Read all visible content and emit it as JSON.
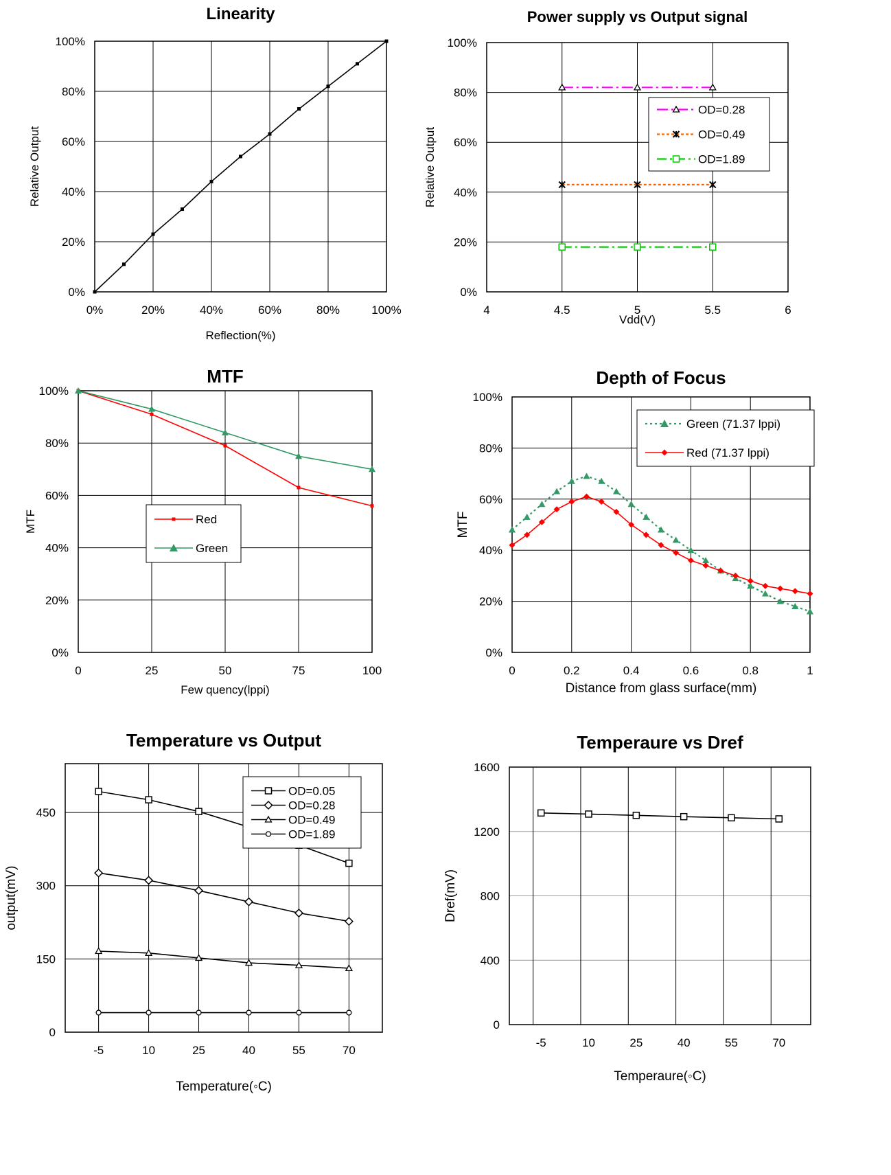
{
  "chart_data": [
    {
      "type": "line",
      "title": "Linearity",
      "xlabel": "Reflection(%)",
      "ylabel": "Relative Output",
      "xlim": [
        0,
        100
      ],
      "ylim": [
        0,
        100
      ],
      "x_ticks": [
        0,
        20,
        40,
        60,
        80,
        100
      ],
      "x_tick_labels": [
        "0%",
        "20%",
        "40%",
        "60%",
        "80%",
        "100%"
      ],
      "y_ticks": [
        0,
        20,
        40,
        60,
        80,
        100
      ],
      "y_tick_labels": [
        "0%",
        "20%",
        "40%",
        "60%",
        "80%",
        "100%"
      ],
      "grid": true,
      "series": [
        {
          "name": "",
          "color": "#000000",
          "marker": "dot",
          "dash": "",
          "x": [
            0,
            10,
            20,
            30,
            40,
            50,
            60,
            70,
            80,
            90,
            100
          ],
          "y": [
            0,
            11,
            23,
            33,
            44,
            54,
            63,
            73,
            82,
            91,
            100
          ]
        }
      ]
    },
    {
      "type": "line",
      "title": "Power supply vs Output signal",
      "xlabel": "Vdd(V)",
      "ylabel": "Relative Output",
      "xlim": [
        4,
        6
      ],
      "ylim": [
        0,
        100
      ],
      "x_ticks": [
        4,
        4.5,
        5,
        5.5,
        6
      ],
      "x_tick_labels": [
        "4",
        "4.5",
        "5",
        "5.5",
        "6"
      ],
      "y_ticks": [
        0,
        20,
        40,
        60,
        80,
        100
      ],
      "y_tick_labels": [
        "0%",
        "20%",
        "40%",
        "60%",
        "80%",
        "100%"
      ],
      "grid": true,
      "legend_position": "right",
      "series": [
        {
          "name": "OD=0.28",
          "color": "#ff00ff",
          "marker": "triangle-open",
          "dash": "16,5,3,5",
          "x": [
            4.5,
            5,
            5.5
          ],
          "y": [
            82,
            82,
            82
          ]
        },
        {
          "name": "OD=0.49",
          "color": "#ff6600",
          "marker": "star",
          "dash": "4,3",
          "x": [
            4.5,
            5,
            5.5
          ],
          "y": [
            43,
            43,
            43
          ]
        },
        {
          "name": "OD=1.89",
          "color": "#00cc00",
          "marker": "square-open",
          "dash": "14,5,3,5",
          "x": [
            4.5,
            5,
            5.5
          ],
          "y": [
            18,
            18,
            18
          ]
        }
      ]
    },
    {
      "type": "line",
      "title": "MTF",
      "xlabel": "Few quency(lppi)",
      "ylabel": "MTF",
      "xlim": [
        0,
        100
      ],
      "ylim": [
        0,
        100
      ],
      "x_ticks": [
        0,
        25,
        50,
        75,
        100
      ],
      "x_tick_labels": [
        "0",
        "25",
        "50",
        "75",
        "100"
      ],
      "y_ticks": [
        0,
        20,
        40,
        60,
        80,
        100
      ],
      "y_tick_labels": [
        "0%",
        "20%",
        "40%",
        "60%",
        "80%",
        "100%"
      ],
      "grid": true,
      "legend_position": "center-left",
      "series": [
        {
          "name": "Red",
          "color": "#ff0000",
          "marker": "dot",
          "dash": "",
          "x": [
            0,
            25,
            50,
            75,
            100
          ],
          "y": [
            100,
            91,
            79,
            63,
            56
          ]
        },
        {
          "name": "Green",
          "color": "#339966",
          "marker": "triangle",
          "dash": "",
          "x": [
            0,
            25,
            50,
            75,
            100
          ],
          "y": [
            100,
            93,
            84,
            75,
            70
          ]
        }
      ]
    },
    {
      "type": "line",
      "title": "Depth of Focus",
      "xlabel": "Distance from glass surface(mm)",
      "ylabel": "MTF",
      "xlim": [
        0,
        1
      ],
      "ylim": [
        0,
        100
      ],
      "x_ticks": [
        0,
        0.2,
        0.4,
        0.6,
        0.8,
        1
      ],
      "x_tick_labels": [
        "0",
        "0.2",
        "0.4",
        "0.6",
        "0.8",
        "1"
      ],
      "y_ticks": [
        0,
        20,
        40,
        60,
        80,
        100
      ],
      "y_tick_labels": [
        "0%",
        "20%",
        "40%",
        "60%",
        "80%",
        "100%"
      ],
      "grid": true,
      "legend_position": "top-right",
      "series": [
        {
          "name": "Green (71.37 lppi)",
          "color": "#339966",
          "marker": "triangle",
          "dash": "3,4",
          "x": [
            0,
            0.05,
            0.1,
            0.15,
            0.2,
            0.25,
            0.3,
            0.35,
            0.4,
            0.45,
            0.5,
            0.55,
            0.6,
            0.65,
            0.7,
            0.75,
            0.8,
            0.85,
            0.9,
            0.95,
            1
          ],
          "y": [
            48,
            53,
            58,
            63,
            67,
            69,
            67,
            63,
            58,
            53,
            48,
            44,
            40,
            36,
            32,
            29,
            26,
            23,
            20,
            18,
            16
          ]
        },
        {
          "name": "Red (71.37 lppi)",
          "color": "#ff0000",
          "marker": "diamond",
          "dash": "",
          "x": [
            0,
            0.05,
            0.1,
            0.15,
            0.2,
            0.25,
            0.3,
            0.35,
            0.4,
            0.45,
            0.5,
            0.55,
            0.6,
            0.65,
            0.7,
            0.75,
            0.8,
            0.85,
            0.9,
            0.95,
            1
          ],
          "y": [
            42,
            46,
            51,
            56,
            59,
            61,
            59,
            55,
            50,
            46,
            42,
            39,
            36,
            34,
            32,
            30,
            28,
            26,
            25,
            24,
            23
          ]
        }
      ]
    },
    {
      "type": "line",
      "title": "Temperature vs Output",
      "xlabel": "Temperature(◦C)",
      "ylabel": "output(mV)",
      "xlim": [
        -15,
        80
      ],
      "ylim": [
        0,
        550
      ],
      "x_ticks": [
        -5,
        10,
        25,
        40,
        55,
        70
      ],
      "x_tick_labels": [
        "-5",
        "10",
        "25",
        "40",
        "55",
        "70"
      ],
      "y_ticks": [
        0,
        150,
        300,
        450
      ],
      "y_tick_labels": [
        "0",
        "150",
        "300",
        "450"
      ],
      "grid": true,
      "legend_position": "top-right",
      "series": [
        {
          "name": "OD=0.05",
          "color": "#000000",
          "marker": "square-open",
          "dash": "",
          "x": [
            -5,
            10,
            25,
            40,
            55,
            70
          ],
          "y": [
            493,
            476,
            452,
            420,
            383,
            346
          ]
        },
        {
          "name": "OD=0.28",
          "color": "#000000",
          "marker": "diamond-open",
          "dash": "",
          "x": [
            -5,
            10,
            25,
            40,
            55,
            70
          ],
          "y": [
            326,
            311,
            290,
            267,
            244,
            227
          ]
        },
        {
          "name": "OD=0.49",
          "color": "#000000",
          "marker": "triangle-open",
          "dash": "",
          "x": [
            -5,
            10,
            25,
            40,
            55,
            70
          ],
          "y": [
            166,
            162,
            152,
            142,
            137,
            131
          ]
        },
        {
          "name": "OD=1.89",
          "color": "#000000",
          "marker": "circle-open",
          "dash": "",
          "x": [
            -5,
            10,
            25,
            40,
            55,
            70
          ],
          "y": [
            40,
            40,
            40,
            40,
            40,
            40
          ]
        }
      ]
    },
    {
      "type": "line",
      "title": "Temperaure vs Dref",
      "xlabel": "Temperaure(◦C)",
      "ylabel": "Dref(mV)",
      "xlim": [
        -15,
        80
      ],
      "ylim": [
        0,
        1600
      ],
      "x_ticks": [
        -5,
        10,
        25,
        40,
        55,
        70
      ],
      "x_tick_labels": [
        "-5",
        "10",
        "25",
        "40",
        "55",
        "70"
      ],
      "y_ticks": [
        0,
        400,
        800,
        1200,
        1600
      ],
      "y_tick_labels": [
        "0",
        "400",
        "800",
        "1200",
        "1600"
      ],
      "grid": true,
      "series": [
        {
          "name": "",
          "color": "#000000",
          "marker": "square-open",
          "dash": "",
          "x": [
            -5,
            10,
            25,
            40,
            55,
            70
          ],
          "y": [
            1315,
            1308,
            1300,
            1292,
            1285,
            1278
          ]
        }
      ]
    }
  ]
}
